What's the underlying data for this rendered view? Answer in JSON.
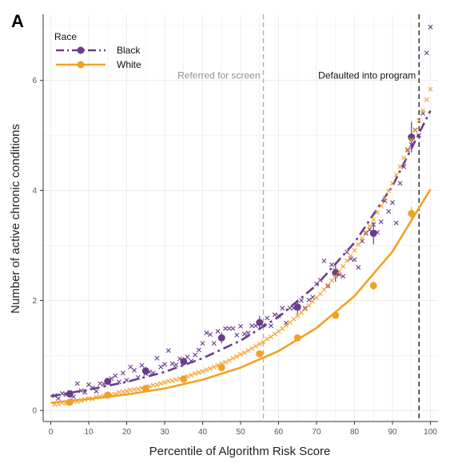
{
  "panel_label": "A",
  "colors": {
    "black_series": "#6a3d8c",
    "white_series": "#f2a125",
    "referral_line": "#b0b0b0",
    "default_line": "#222222",
    "grid": "#ececec"
  },
  "chart_data": {
    "type": "scatter",
    "title": "",
    "xlabel": "Percentile of Algorithm Risk Score",
    "ylabel": "Number of active chronic conditions",
    "xlim": [
      -2,
      102
    ],
    "ylim": [
      -0.2,
      7.2
    ],
    "x_ticks": [
      0,
      10,
      20,
      30,
      40,
      50,
      60,
      70,
      80,
      90,
      100
    ],
    "y_ticks": [
      0,
      2,
      4,
      6
    ],
    "grid": true,
    "legend": {
      "title": "Race",
      "position": "top-left"
    },
    "annotations": [
      {
        "text": "Referred for screen",
        "x": 56,
        "style": "dashed",
        "color": "grey"
      },
      {
        "text": "Defaulted into program",
        "x": 97,
        "style": "dashed",
        "color": "black"
      }
    ],
    "series": [
      {
        "name": "Black",
        "line_style": "dashdot",
        "binned_means": [
          {
            "x": 5,
            "y": 0.3,
            "err": 0.05
          },
          {
            "x": 15,
            "y": 0.53,
            "err": 0.06
          },
          {
            "x": 25,
            "y": 0.72,
            "err": 0.07
          },
          {
            "x": 35,
            "y": 0.89,
            "err": 0.08
          },
          {
            "x": 45,
            "y": 1.32,
            "err": 0.1
          },
          {
            "x": 55,
            "y": 1.6,
            "err": 0.12
          },
          {
            "x": 65,
            "y": 1.88,
            "err": 0.13
          },
          {
            "x": 75,
            "y": 2.5,
            "err": 0.16
          },
          {
            "x": 85,
            "y": 3.22,
            "err": 0.2
          },
          {
            "x": 95,
            "y": 4.97,
            "err": 0.28
          }
        ],
        "fit": [
          {
            "x": 0,
            "y": 0.26
          },
          {
            "x": 10,
            "y": 0.38
          },
          {
            "x": 20,
            "y": 0.52
          },
          {
            "x": 30,
            "y": 0.7
          },
          {
            "x": 40,
            "y": 0.95
          },
          {
            "x": 50,
            "y": 1.27
          },
          {
            "x": 60,
            "y": 1.7
          },
          {
            "x": 70,
            "y": 2.28
          },
          {
            "x": 80,
            "y": 3.05
          },
          {
            "x": 90,
            "y": 4.08
          },
          {
            "x": 100,
            "y": 5.45
          }
        ],
        "points": [
          {
            "x": 1,
            "y": 0.27
          },
          {
            "x": 2,
            "y": 0.22
          },
          {
            "x": 3,
            "y": 0.31
          },
          {
            "x": 4,
            "y": 0.29
          },
          {
            "x": 5,
            "y": 0.33
          },
          {
            "x": 6,
            "y": 0.25
          },
          {
            "x": 7,
            "y": 0.49
          },
          {
            "x": 8,
            "y": 0.36
          },
          {
            "x": 9,
            "y": 0.33
          },
          {
            "x": 10,
            "y": 0.47
          },
          {
            "x": 11,
            "y": 0.41
          },
          {
            "x": 12,
            "y": 0.35
          },
          {
            "x": 13,
            "y": 0.49
          },
          {
            "x": 14,
            "y": 0.48
          },
          {
            "x": 15,
            "y": 0.52
          },
          {
            "x": 16,
            "y": 0.58
          },
          {
            "x": 17,
            "y": 0.63
          },
          {
            "x": 18,
            "y": 0.52
          },
          {
            "x": 19,
            "y": 0.68
          },
          {
            "x": 20,
            "y": 0.55
          },
          {
            "x": 21,
            "y": 0.79
          },
          {
            "x": 22,
            "y": 0.73
          },
          {
            "x": 23,
            "y": 0.6
          },
          {
            "x": 24,
            "y": 0.82
          },
          {
            "x": 25,
            "y": 0.67
          },
          {
            "x": 26,
            "y": 0.7
          },
          {
            "x": 27,
            "y": 0.68
          },
          {
            "x": 28,
            "y": 0.95
          },
          {
            "x": 29,
            "y": 0.79
          },
          {
            "x": 30,
            "y": 0.84
          },
          {
            "x": 31,
            "y": 1.09
          },
          {
            "x": 32,
            "y": 0.85
          },
          {
            "x": 33,
            "y": 0.83
          },
          {
            "x": 34,
            "y": 0.94
          },
          {
            "x": 35,
            "y": 0.88
          },
          {
            "x": 36,
            "y": 0.97
          },
          {
            "x": 37,
            "y": 0.9
          },
          {
            "x": 38,
            "y": 1.01
          },
          {
            "x": 39,
            "y": 1.1
          },
          {
            "x": 40,
            "y": 1.22
          },
          {
            "x": 41,
            "y": 1.41
          },
          {
            "x": 42,
            "y": 1.38
          },
          {
            "x": 43,
            "y": 1.22
          },
          {
            "x": 44,
            "y": 1.44
          },
          {
            "x": 45,
            "y": 1.31
          },
          {
            "x": 46,
            "y": 1.49
          },
          {
            "x": 47,
            "y": 1.49
          },
          {
            "x": 48,
            "y": 1.49
          },
          {
            "x": 49,
            "y": 1.37
          },
          {
            "x": 50,
            "y": 1.53
          },
          {
            "x": 51,
            "y": 1.39
          },
          {
            "x": 52,
            "y": 1.41
          },
          {
            "x": 53,
            "y": 1.54
          },
          {
            "x": 54,
            "y": 1.54
          },
          {
            "x": 55,
            "y": 1.59
          },
          {
            "x": 56,
            "y": 1.55
          },
          {
            "x": 57,
            "y": 1.68
          },
          {
            "x": 58,
            "y": 1.54
          },
          {
            "x": 59,
            "y": 1.74
          },
          {
            "x": 60,
            "y": 1.72
          },
          {
            "x": 61,
            "y": 1.86
          },
          {
            "x": 62,
            "y": 1.59
          },
          {
            "x": 63,
            "y": 1.86
          },
          {
            "x": 64,
            "y": 1.86
          },
          {
            "x": 65,
            "y": 1.88
          },
          {
            "x": 66,
            "y": 2.0
          },
          {
            "x": 67,
            "y": 1.86
          },
          {
            "x": 68,
            "y": 2.01
          },
          {
            "x": 69,
            "y": 2.06
          },
          {
            "x": 70,
            "y": 2.3
          },
          {
            "x": 71,
            "y": 2.37
          },
          {
            "x": 72,
            "y": 2.72
          },
          {
            "x": 73,
            "y": 2.26
          },
          {
            "x": 74,
            "y": 2.65
          },
          {
            "x": 75,
            "y": 2.54
          },
          {
            "x": 76,
            "y": 2.47
          },
          {
            "x": 77,
            "y": 2.44
          },
          {
            "x": 78,
            "y": 2.88
          },
          {
            "x": 79,
            "y": 2.76
          },
          {
            "x": 80,
            "y": 2.74
          },
          {
            "x": 81,
            "y": 2.6
          },
          {
            "x": 82,
            "y": 3.08
          },
          {
            "x": 83,
            "y": 3.22
          },
          {
            "x": 84,
            "y": 3.29
          },
          {
            "x": 85,
            "y": 3.38
          },
          {
            "x": 86,
            "y": 3.24
          },
          {
            "x": 87,
            "y": 3.43
          },
          {
            "x": 88,
            "y": 3.81
          },
          {
            "x": 89,
            "y": 3.62
          },
          {
            "x": 90,
            "y": 3.78
          },
          {
            "x": 91,
            "y": 3.41
          },
          {
            "x": 92,
            "y": 4.13
          },
          {
            "x": 93,
            "y": 4.43
          },
          {
            "x": 94,
            "y": 4.73
          },
          {
            "x": 95,
            "y": 4.83
          },
          {
            "x": 96,
            "y": 5.1
          },
          {
            "x": 97,
            "y": 5.0
          },
          {
            "x": 98,
            "y": 5.4
          },
          {
            "x": 99,
            "y": 6.5
          },
          {
            "x": 100,
            "y": 6.97
          }
        ]
      },
      {
        "name": "White",
        "line_style": "solid",
        "binned_means": [
          {
            "x": 5,
            "y": 0.15,
            "err": 0.02
          },
          {
            "x": 15,
            "y": 0.28,
            "err": 0.02
          },
          {
            "x": 25,
            "y": 0.4,
            "err": 0.02
          },
          {
            "x": 35,
            "y": 0.57,
            "err": 0.03
          },
          {
            "x": 45,
            "y": 0.78,
            "err": 0.03
          },
          {
            "x": 55,
            "y": 1.03,
            "err": 0.04
          },
          {
            "x": 65,
            "y": 1.32,
            "err": 0.05
          },
          {
            "x": 75,
            "y": 1.73,
            "err": 0.06
          },
          {
            "x": 85,
            "y": 2.27,
            "err": 0.08
          },
          {
            "x": 95,
            "y": 3.58,
            "err": 0.12
          }
        ],
        "fit": [
          {
            "x": 0,
            "y": 0.14
          },
          {
            "x": 10,
            "y": 0.21
          },
          {
            "x": 20,
            "y": 0.29
          },
          {
            "x": 30,
            "y": 0.4
          },
          {
            "x": 40,
            "y": 0.56
          },
          {
            "x": 50,
            "y": 0.78
          },
          {
            "x": 60,
            "y": 1.08
          },
          {
            "x": 70,
            "y": 1.5
          },
          {
            "x": 80,
            "y": 2.08
          },
          {
            "x": 90,
            "y": 2.89
          },
          {
            "x": 100,
            "y": 4.02
          }
        ],
        "points": [
          {
            "x": 1,
            "y": 0.11
          },
          {
            "x": 2,
            "y": 0.12
          },
          {
            "x": 3,
            "y": 0.14
          },
          {
            "x": 4,
            "y": 0.13
          },
          {
            "x": 5,
            "y": 0.15
          },
          {
            "x": 6,
            "y": 0.17
          },
          {
            "x": 7,
            "y": 0.16
          },
          {
            "x": 8,
            "y": 0.18
          },
          {
            "x": 9,
            "y": 0.2
          },
          {
            "x": 10,
            "y": 0.22
          },
          {
            "x": 11,
            "y": 0.21
          },
          {
            "x": 12,
            "y": 0.24
          },
          {
            "x": 13,
            "y": 0.25
          },
          {
            "x": 14,
            "y": 0.26
          },
          {
            "x": 15,
            "y": 0.28
          },
          {
            "x": 16,
            "y": 0.29
          },
          {
            "x": 17,
            "y": 0.3
          },
          {
            "x": 18,
            "y": 0.33
          },
          {
            "x": 19,
            "y": 0.34
          },
          {
            "x": 20,
            "y": 0.35
          },
          {
            "x": 21,
            "y": 0.37
          },
          {
            "x": 22,
            "y": 0.38
          },
          {
            "x": 23,
            "y": 0.39
          },
          {
            "x": 24,
            "y": 0.41
          },
          {
            "x": 25,
            "y": 0.42
          },
          {
            "x": 26,
            "y": 0.44
          },
          {
            "x": 27,
            "y": 0.46
          },
          {
            "x": 28,
            "y": 0.47
          },
          {
            "x": 29,
            "y": 0.49
          },
          {
            "x": 30,
            "y": 0.51
          },
          {
            "x": 31,
            "y": 0.53
          },
          {
            "x": 32,
            "y": 0.54
          },
          {
            "x": 33,
            "y": 0.56
          },
          {
            "x": 34,
            "y": 0.58
          },
          {
            "x": 35,
            "y": 0.6
          },
          {
            "x": 36,
            "y": 0.62
          },
          {
            "x": 37,
            "y": 0.64
          },
          {
            "x": 38,
            "y": 0.67
          },
          {
            "x": 39,
            "y": 0.69
          },
          {
            "x": 40,
            "y": 0.71
          },
          {
            "x": 41,
            "y": 0.74
          },
          {
            "x": 42,
            "y": 0.76
          },
          {
            "x": 43,
            "y": 0.79
          },
          {
            "x": 44,
            "y": 0.82
          },
          {
            "x": 45,
            "y": 0.85
          },
          {
            "x": 46,
            "y": 0.88
          },
          {
            "x": 47,
            "y": 0.91
          },
          {
            "x": 48,
            "y": 0.95
          },
          {
            "x": 49,
            "y": 0.98
          },
          {
            "x": 50,
            "y": 1.02
          },
          {
            "x": 51,
            "y": 1.05
          },
          {
            "x": 52,
            "y": 1.09
          },
          {
            "x": 53,
            "y": 1.13
          },
          {
            "x": 54,
            "y": 1.17
          },
          {
            "x": 55,
            "y": 1.21
          },
          {
            "x": 56,
            "y": 1.25
          },
          {
            "x": 57,
            "y": 1.3
          },
          {
            "x": 58,
            "y": 1.34
          },
          {
            "x": 59,
            "y": 1.39
          },
          {
            "x": 60,
            "y": 1.44
          },
          {
            "x": 61,
            "y": 1.49
          },
          {
            "x": 62,
            "y": 1.55
          },
          {
            "x": 63,
            "y": 1.6
          },
          {
            "x": 64,
            "y": 1.66
          },
          {
            "x": 65,
            "y": 1.72
          },
          {
            "x": 66,
            "y": 1.78
          },
          {
            "x": 67,
            "y": 1.84
          },
          {
            "x": 68,
            "y": 1.91
          },
          {
            "x": 69,
            "y": 1.98
          },
          {
            "x": 70,
            "y": 2.05
          },
          {
            "x": 71,
            "y": 2.12
          },
          {
            "x": 72,
            "y": 2.2
          },
          {
            "x": 73,
            "y": 2.28
          },
          {
            "x": 74,
            "y": 2.36
          },
          {
            "x": 75,
            "y": 2.44
          },
          {
            "x": 76,
            "y": 2.53
          },
          {
            "x": 77,
            "y": 2.62
          },
          {
            "x": 78,
            "y": 2.72
          },
          {
            "x": 79,
            "y": 2.81
          },
          {
            "x": 80,
            "y": 2.91
          },
          {
            "x": 81,
            "y": 3.02
          },
          {
            "x": 82,
            "y": 3.13
          },
          {
            "x": 83,
            "y": 3.24
          },
          {
            "x": 84,
            "y": 3.35
          },
          {
            "x": 85,
            "y": 3.47
          },
          {
            "x": 86,
            "y": 3.6
          },
          {
            "x": 87,
            "y": 3.72
          },
          {
            "x": 88,
            "y": 3.86
          },
          {
            "x": 89,
            "y": 3.99
          },
          {
            "x": 90,
            "y": 4.13
          },
          {
            "x": 91,
            "y": 4.28
          },
          {
            "x": 92,
            "y": 4.43
          },
          {
            "x": 93,
            "y": 4.59
          },
          {
            "x": 94,
            "y": 4.75
          },
          {
            "x": 95,
            "y": 4.92
          },
          {
            "x": 96,
            "y": 5.09
          },
          {
            "x": 97,
            "y": 5.27
          },
          {
            "x": 98,
            "y": 5.45
          },
          {
            "x": 99,
            "y": 5.65
          },
          {
            "x": 100,
            "y": 5.84
          }
        ]
      }
    ]
  }
}
